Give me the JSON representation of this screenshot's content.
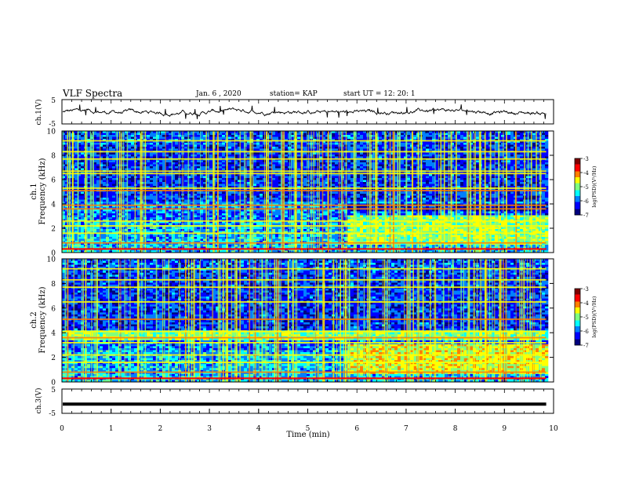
{
  "header": {
    "title": "VLF Spectra",
    "date": "Jan. 6 , 2020",
    "station": "station= KAP",
    "start_ut": "start UT =  12: 20: 1"
  },
  "chart_data": [
    {
      "type": "line",
      "panel": "ch1-waveform",
      "ylabel": "ch.1(V)",
      "ylim": [
        -5,
        5
      ],
      "yticks": [
        "5",
        "-5"
      ],
      "xlim": [
        0,
        10
      ],
      "description_values": "noisy waveform centered near 0 V, amplitude about ±1.5 V, data extends to ~9.85 min"
    },
    {
      "type": "heatmap",
      "panel": "ch1-spectrogram",
      "ylabel": "ch.1\nFrequency (kHz)",
      "ylabel_line1": "ch.1",
      "ylabel_line2": "Frequency (kHz)",
      "ylim": [
        0,
        10
      ],
      "yticks": [
        "0",
        "2",
        "4",
        "6",
        "8",
        "10"
      ],
      "xlim": [
        0,
        10
      ],
      "data_end_min": 9.85,
      "colorbar": {
        "label": "log(PSD)(V²/Hz)",
        "range": [
          -7,
          -3
        ],
        "ticks": [
          "-3",
          "-4",
          "-5",
          "-6",
          "-7"
        ]
      },
      "persistent_lines_khz": [
        0.3,
        0.8,
        1.6,
        2.2,
        2.6,
        3.6,
        3.9,
        5.1,
        5.3,
        6.5,
        6.7,
        7.7,
        8.3,
        9.2
      ],
      "regime_change_min": 5.8
    },
    {
      "type": "heatmap",
      "panel": "ch2-spectrogram",
      "ylabel": "ch.2\nFrequency (kHz)",
      "ylabel_line1": "ch.2",
      "ylabel_line2": "Frequency (kHz)",
      "ylim": [
        0,
        10
      ],
      "yticks": [
        "0",
        "2",
        "4",
        "6",
        "8",
        "10"
      ],
      "xlim": [
        0,
        10
      ],
      "data_end_min": 9.85,
      "colorbar": {
        "label": "log(PSD)(V²/Hz)",
        "range": [
          -7,
          -3
        ],
        "ticks": [
          "-3",
          "-4",
          "-5",
          "-6",
          "-7"
        ]
      },
      "persistent_lines_khz": [
        0.3,
        0.8,
        1.6,
        2.2,
        3.2,
        3.6,
        4.1,
        5.1,
        6.5,
        7.7,
        8.3,
        9.2
      ],
      "regime_change_min": 5.8
    },
    {
      "type": "line",
      "panel": "ch3-waveform",
      "ylabel": "ch.3(V)",
      "ylim": [
        -5,
        5
      ],
      "yticks": [
        "5",
        "-5"
      ],
      "xlim": [
        0,
        10
      ],
      "x": [
        0,
        9.85
      ],
      "y": [
        -1.2,
        -1.2
      ],
      "xlabel": "Time (min)",
      "xticks": [
        "0",
        "1",
        "2",
        "3",
        "4",
        "5",
        "6",
        "7",
        "8",
        "9",
        "10"
      ]
    }
  ],
  "colors": {
    "colormap": [
      "#00007f",
      "#0000ff",
      "#007fff",
      "#00ffff",
      "#7fff7f",
      "#ffff00",
      "#ff7f00",
      "#ff0000",
      "#7f0000"
    ],
    "axis": "#000000",
    "trace": "#000000"
  }
}
